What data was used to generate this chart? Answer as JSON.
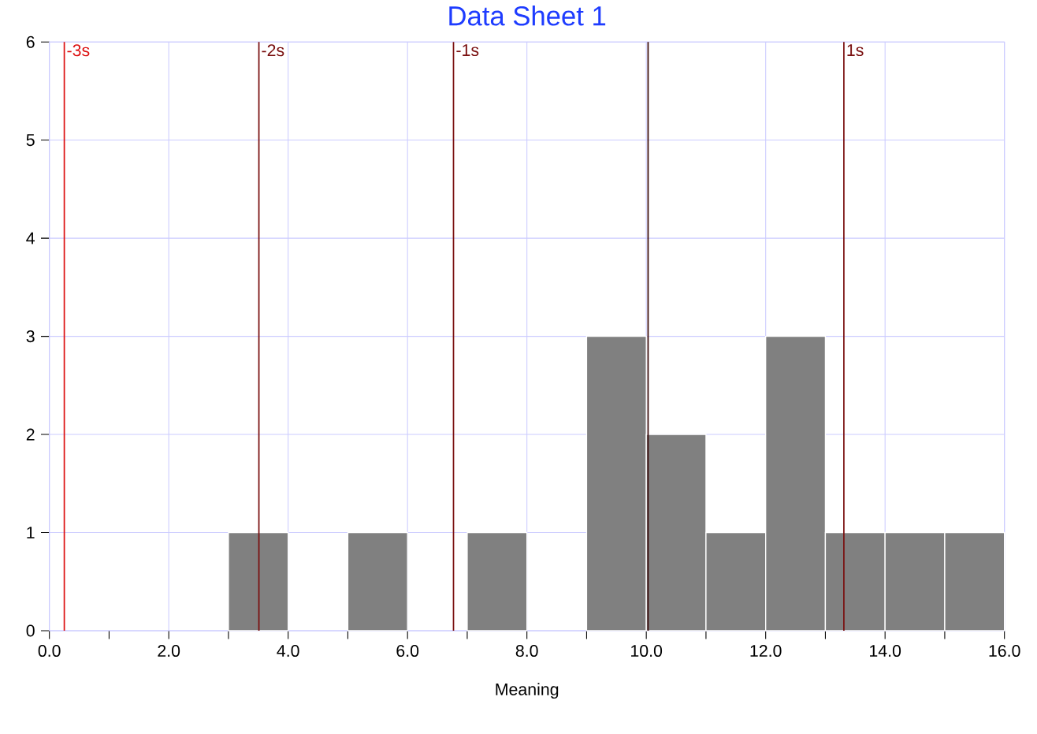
{
  "chart_data": {
    "type": "histogram",
    "title": "Data Sheet 1",
    "xlabel": "Meaning",
    "bins": [
      0,
      1,
      2,
      3,
      4,
      5,
      6,
      7,
      8,
      9,
      10,
      11,
      12,
      13,
      14,
      15,
      16
    ],
    "values": [
      0,
      0,
      0,
      1,
      0,
      1,
      0,
      1,
      0,
      3,
      2,
      1,
      3,
      1,
      1,
      1
    ],
    "color": "#808080",
    "xlim": [
      0,
      16
    ],
    "ylim": [
      0,
      6
    ],
    "xticks": [
      {
        "value": 0,
        "label": "0.0"
      },
      {
        "value": 1,
        "label": null
      },
      {
        "value": 2,
        "label": "2.0"
      },
      {
        "value": 3,
        "label": null
      },
      {
        "value": 4,
        "label": "4.0"
      },
      {
        "value": 5,
        "label": null
      },
      {
        "value": 6,
        "label": "6.0"
      },
      {
        "value": 7,
        "label": null
      },
      {
        "value": 8,
        "label": "8.0"
      },
      {
        "value": 9,
        "label": null
      },
      {
        "value": 10,
        "label": "10.0"
      },
      {
        "value": 11,
        "label": null
      },
      {
        "value": 12,
        "label": "12.0"
      },
      {
        "value": 13,
        "label": null
      },
      {
        "value": 14,
        "label": "14.0"
      },
      {
        "value": 15,
        "label": null
      },
      {
        "value": 16,
        "label": "16.0"
      }
    ],
    "yticks": [
      0,
      1,
      2,
      3,
      4,
      5,
      6
    ],
    "grid": true,
    "ref_lines": [
      {
        "axis": "x",
        "value": 0.25,
        "label": "-3s",
        "color": "#dd1111"
      },
      {
        "axis": "x",
        "value": 3.51,
        "label": "-2s",
        "color": "#7a1010"
      },
      {
        "axis": "x",
        "value": 6.77,
        "label": "-1s",
        "color": "#7a1010"
      },
      {
        "axis": "x",
        "value": 10.03,
        "label": null,
        "color": "#3a0a0a"
      },
      {
        "axis": "x",
        "value": 13.31,
        "label": "1s",
        "color": "#7a1010"
      }
    ]
  }
}
